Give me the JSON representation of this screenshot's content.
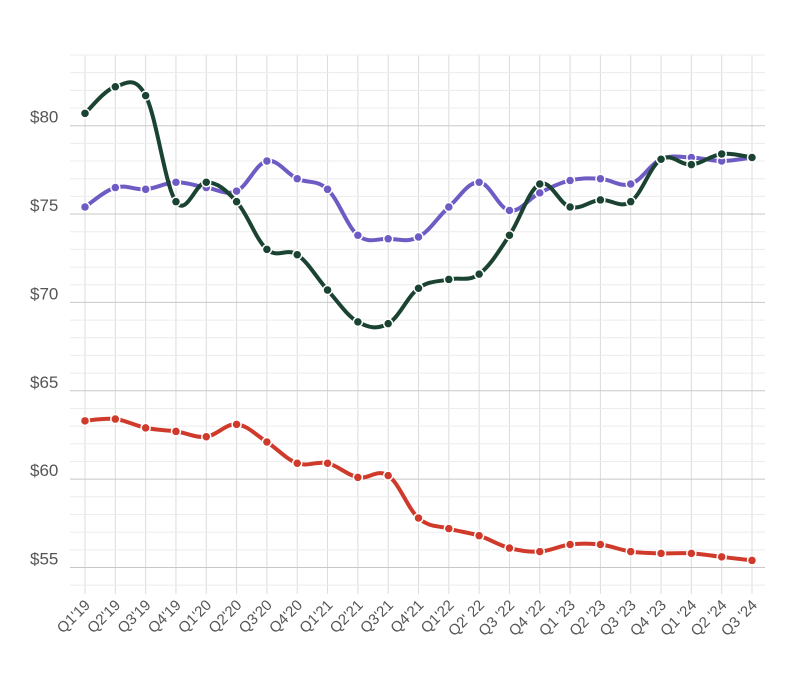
{
  "chart_data": {
    "type": "line",
    "title": "",
    "xlabel": "",
    "ylabel": "",
    "ylim": [
      53.5,
      84
    ],
    "yticks": [
      55,
      60,
      65,
      70,
      75,
      80
    ],
    "ytick_labels": [
      "$55",
      "$60",
      "$65",
      "$70",
      "$75",
      "$80"
    ],
    "grid": true,
    "legend": "none",
    "categories": [
      "Q1'19",
      "Q2'19",
      "Q3'19",
      "Q4'19",
      "Q1'20",
      "Q2'20",
      "Q3'20",
      "Q4'20",
      "Q1'21",
      "Q2'21",
      "Q3'21",
      "Q4'21",
      "Q1'22",
      "Q2' 22",
      "Q3 '22",
      "Q4 '22",
      "Q1 '23",
      "Q2 '23",
      "Q3 '23",
      "Q4 '23",
      "Q1 '24",
      "Q2 '24",
      "Q3 '24"
    ],
    "series": [
      {
        "color": "#6f5bc4",
        "values": [
          75.4,
          76.5,
          76.4,
          76.8,
          76.5,
          76.3,
          78.0,
          77.0,
          76.4,
          73.8,
          73.6,
          73.7,
          75.4,
          76.8,
          75.2,
          76.2,
          76.9,
          77.0,
          76.7,
          78.1,
          78.2,
          78.0,
          78.2
        ]
      },
      {
        "color": "#1b4332",
        "values": [
          80.7,
          82.2,
          81.7,
          75.7,
          76.8,
          75.7,
          73.0,
          72.7,
          70.7,
          68.9,
          68.8,
          70.8,
          71.3,
          71.6,
          73.8,
          76.7,
          75.4,
          75.8,
          75.7,
          78.1,
          77.8,
          78.4,
          78.2
        ]
      },
      {
        "color": "#cf3a2b",
        "values": [
          63.3,
          63.4,
          62.9,
          62.7,
          62.4,
          63.1,
          62.1,
          60.9,
          60.9,
          60.1,
          60.2,
          57.8,
          57.2,
          56.8,
          56.1,
          55.9,
          56.3,
          56.3,
          55.9,
          55.8,
          55.8,
          55.6,
          55.4
        ]
      }
    ]
  }
}
